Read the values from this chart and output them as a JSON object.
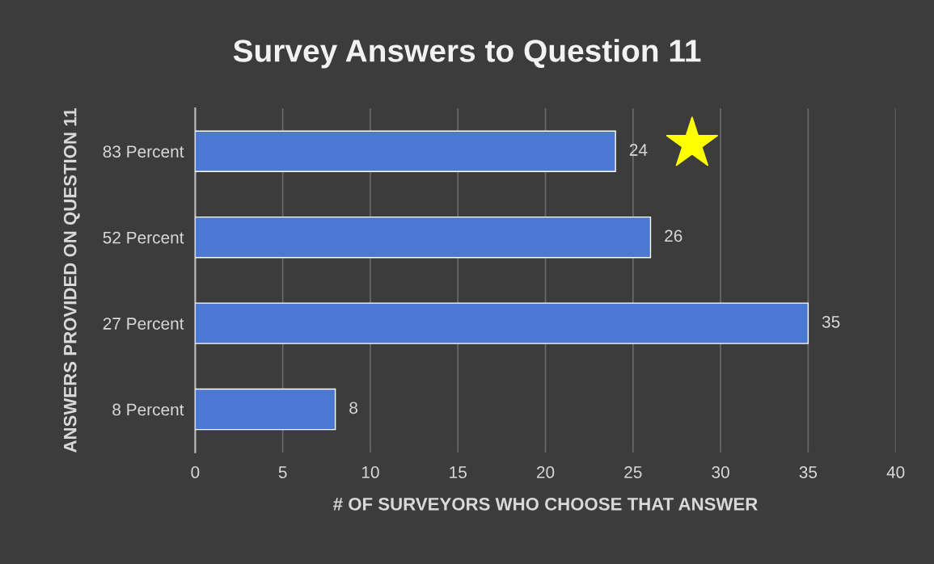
{
  "chart_data": {
    "type": "bar",
    "orientation": "horizontal",
    "title": "Survey Answers to Question 11",
    "xlabel": "# OF SURVEYORS WHO CHOOSE THAT ANSWER",
    "ylabel": "ANSWERS PROVIDED ON QUESTION 11",
    "categories": [
      "83 Percent",
      "52 Percent",
      "27 Percent",
      "8 Percent"
    ],
    "values": [
      24,
      26,
      35,
      8
    ],
    "color": "#4a78d2",
    "xlim": [
      0,
      40
    ],
    "xticks": [
      0,
      5,
      10,
      15,
      20,
      25,
      30,
      35,
      40
    ],
    "grid": "x",
    "data_labels": true
  }
}
